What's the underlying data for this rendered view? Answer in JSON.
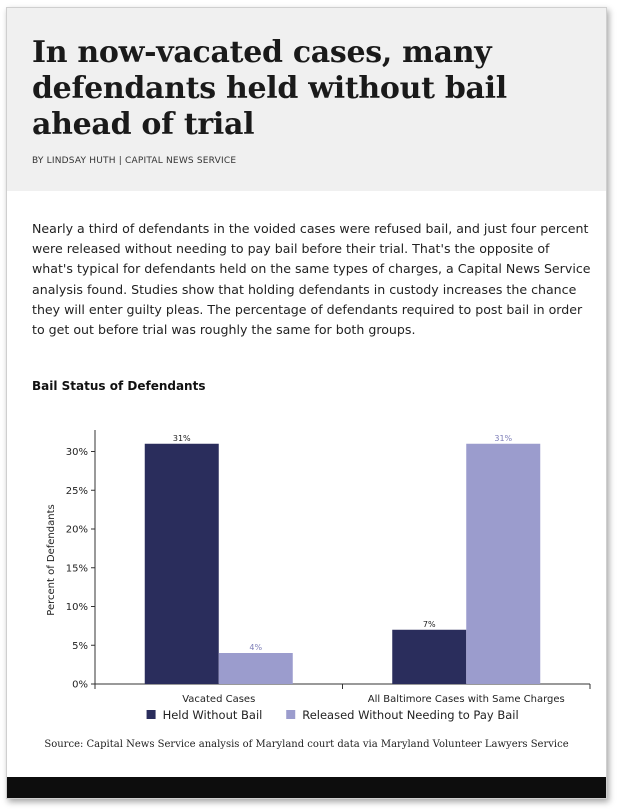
{
  "article": {
    "headline": "In now-vacated cases, many defendants held without bail ahead of trial",
    "byline": "BY LINDSAY HUTH | CAPITAL NEWS SERVICE",
    "intro": "Nearly a third of defendants in the voided cases were refused bail, and just four percent were released without needing to pay bail before their trial. That's the opposite of what's typical for defendants held on the same types of charges, a Capital News Service analysis found. Studies show that holding defendants in custody increases the chance they will enter guilty pleas. The percentage of defendants required to post bail in order to get out before trial was roughly the same for both groups.",
    "source": "Source: Capital News Service analysis of Maryland court data via Maryland Volunteer Lawyers Service"
  },
  "chart_data": {
    "type": "bar",
    "title": "Bail Status of Defendants",
    "ylabel": "Percent of Defendants",
    "xlabel": "",
    "categories": [
      "Vacated Cases",
      "All Baltimore Cases with Same Charges"
    ],
    "series": [
      {
        "name": "Held Without Bail",
        "values": [
          31,
          7
        ],
        "labels": [
          "31%",
          "7%"
        ],
        "color": "#2a2d5c"
      },
      {
        "name": "Released Without Needing to Pay Bail",
        "values": [
          4,
          31
        ],
        "labels": [
          "4%",
          "31%"
        ],
        "color": "#9b9ccd"
      }
    ],
    "ylim": [
      0,
      32
    ],
    "yticks": [
      0,
      5,
      10,
      15,
      20,
      25,
      30
    ],
    "ytick_labels": [
      "0%",
      "5%",
      "10%",
      "15%",
      "20%",
      "25%",
      "30%"
    ],
    "grid": false,
    "legend": "bottom-center"
  },
  "colors": {
    "header_bg": "#f0f0f0",
    "series_dark": "#2a2d5c",
    "series_light": "#9b9ccd",
    "footer_bar": "#0d0d0d"
  }
}
